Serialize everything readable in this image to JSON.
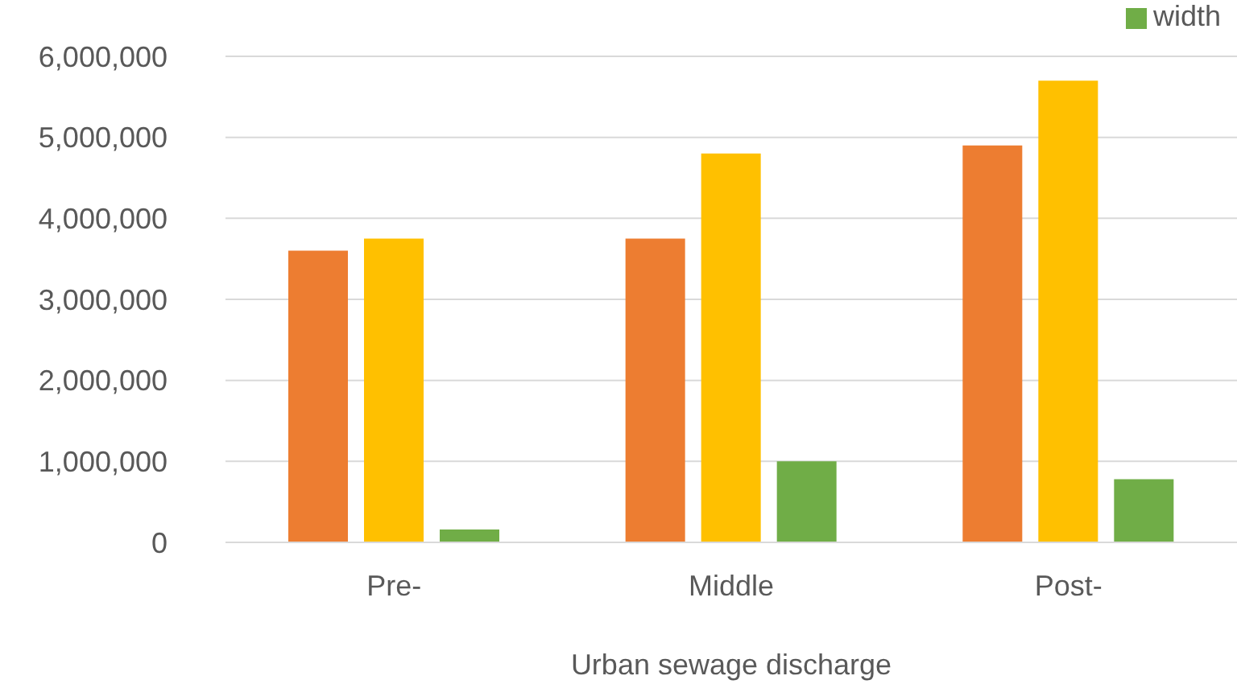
{
  "chart_data": {
    "type": "bar",
    "xlabel": "Urban sewage discharge",
    "categories": [
      "Pre-",
      "Middle",
      "Post-"
    ],
    "series": [
      {
        "color": "#ed7d31",
        "values": [
          3600000,
          3750000,
          4900000
        ]
      },
      {
        "color": "#ffc000",
        "values": [
          3750000,
          4800000,
          5700000
        ]
      },
      {
        "name": "width",
        "color": "#70ad47",
        "values": [
          160000,
          1000000,
          780000
        ]
      }
    ],
    "ylim": [
      0,
      6000000
    ],
    "yticks": [
      0,
      {
        "value": 1000000,
        "label": "1,000,000"
      },
      {
        "value": 2000000,
        "label": "2,000,000"
      },
      {
        "value": 3000000,
        "label": "3,000,000"
      },
      {
        "value": 4000000,
        "label": "4,000,000"
      },
      {
        "value": 5000000,
        "label": "5,000,000"
      },
      {
        "value": 6000000,
        "label": "6,000,000"
      }
    ],
    "grid": "y",
    "legend": "top right"
  }
}
